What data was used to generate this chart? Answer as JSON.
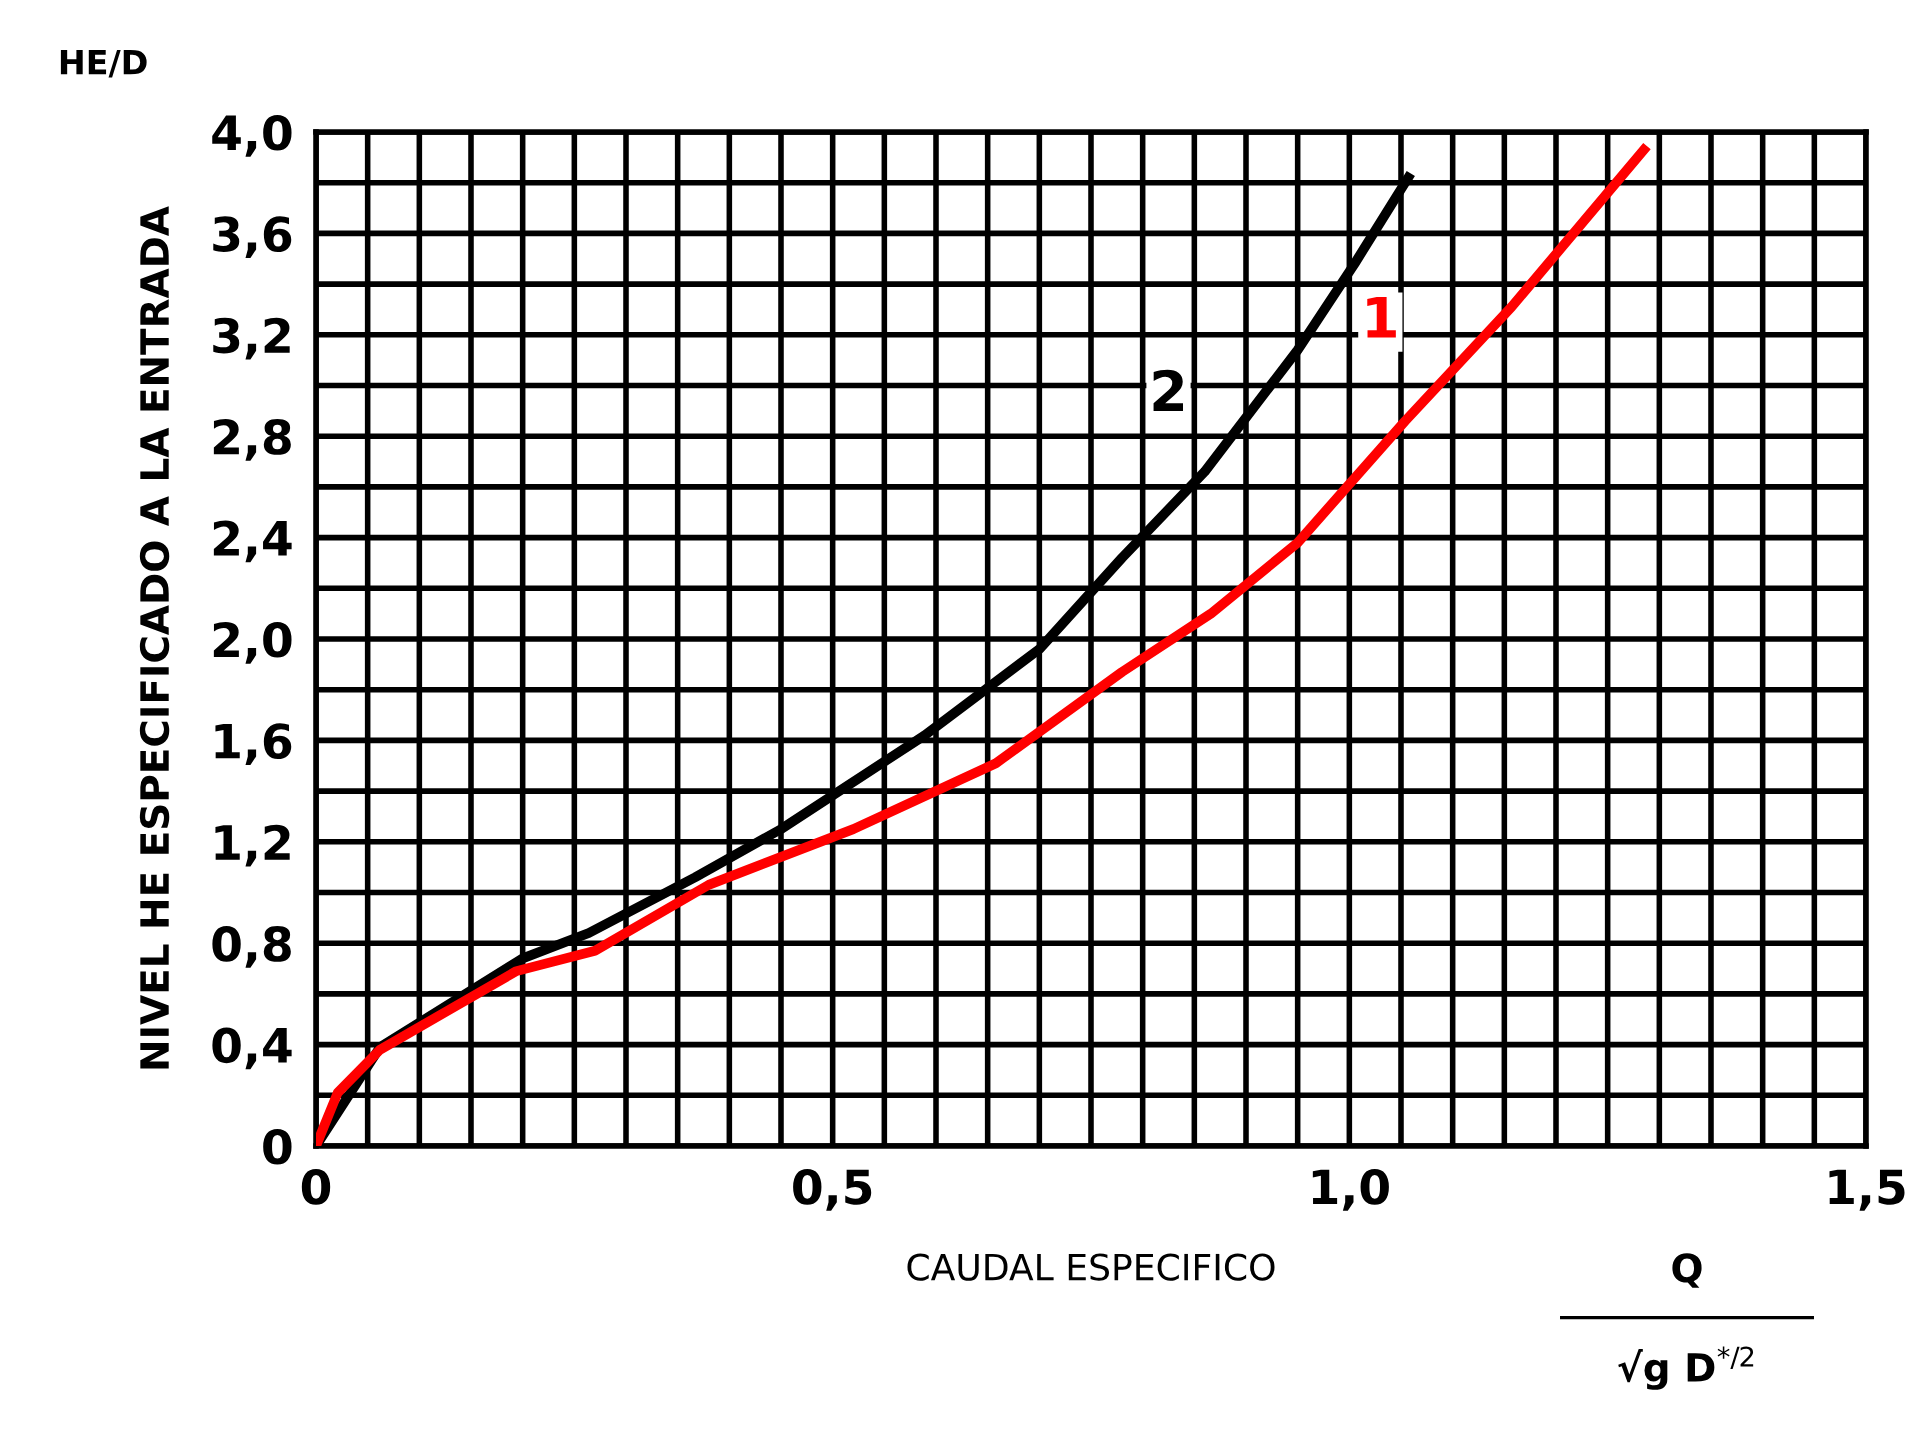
{
  "chart_data": {
    "type": "line",
    "xlabel": "CAUDAL ESPECIFICO",
    "ylabel": "NIVEL HE ESPECIFICADO A LA ENTRADA",
    "series": [
      {
        "name": "2",
        "color": "#000000",
        "x": [
          0,
          0.062,
          0.2,
          0.264,
          0.367,
          0.45,
          0.589,
          0.7,
          0.78,
          0.86,
          0.95,
          1.005,
          1.057
        ],
        "values": [
          0,
          0.39,
          0.74,
          0.84,
          1.06,
          1.25,
          1.62,
          1.96,
          2.32,
          2.66,
          3.14,
          3.48,
          3.82
        ]
      },
      {
        "name": "1",
        "color": "#ff0000",
        "x": [
          0,
          0.021,
          0.062,
          0.194,
          0.27,
          0.38,
          0.52,
          0.658,
          0.78,
          0.866,
          0.95,
          1.054,
          1.157,
          1.285
        ],
        "values": [
          0,
          0.21,
          0.38,
          0.69,
          0.77,
          1.03,
          1.25,
          1.51,
          1.87,
          2.1,
          2.38,
          2.86,
          3.31,
          3.93
        ]
      }
    ],
    "annotations": [
      "HE/D",
      "Q",
      "√g D$^{*/2}$"
    ],
    "xlim": [
      0,
      1.5
    ],
    "ylim": [
      0,
      4.0
    ],
    "xticks": [
      0,
      {
        "value": 0.05,
        "label": null
      },
      {
        "value": 0.1,
        "label": null
      },
      {
        "value": 0.15,
        "label": null
      },
      {
        "value": 0.2,
        "label": null
      },
      {
        "value": 0.25,
        "label": null
      },
      {
        "value": 0.3,
        "label": null
      },
      {
        "value": 0.35,
        "label": null
      },
      {
        "value": 0.4,
        "label": null
      },
      {
        "value": 0.45,
        "label": null
      },
      {
        "value": 0.5,
        "label": "0,5"
      },
      {
        "value": 0.55,
        "label": null
      },
      {
        "value": 0.6,
        "label": null
      },
      {
        "value": 0.65,
        "label": null
      },
      {
        "value": 0.7,
        "label": null
      },
      {
        "value": 0.75,
        "label": null
      },
      {
        "value": 0.8,
        "label": null
      },
      {
        "value": 0.85,
        "label": null
      },
      {
        "value": 0.9,
        "label": null
      },
      {
        "value": 0.95,
        "label": null
      },
      {
        "value": 1.0,
        "label": "1,0"
      },
      {
        "value": 1.05,
        "label": null
      },
      {
        "value": 1.1,
        "label": null
      },
      {
        "value": 1.15,
        "label": null
      },
      {
        "value": 1.2,
        "label": null
      },
      {
        "value": 1.25,
        "label": null
      },
      {
        "value": 1.3,
        "label": null
      },
      {
        "value": 1.35,
        "label": null
      },
      {
        "value": 1.4,
        "label": null
      },
      {
        "value": 1.45,
        "label": null
      },
      {
        "value": 1.5,
        "label": "1,5"
      }
    ],
    "yticks": [
      0,
      {
        "value": 0.2,
        "label": null
      },
      {
        "value": 0.4,
        "label": "0,4"
      },
      {
        "value": 0.6,
        "label": null
      },
      {
        "value": 0.8,
        "label": "0,8"
      },
      {
        "value": 1.0,
        "label": null
      },
      {
        "value": 1.2,
        "label": "1,2"
      },
      {
        "value": 1.4,
        "label": null
      },
      {
        "value": 1.6,
        "label": "1,6"
      },
      {
        "value": 1.8,
        "label": null
      },
      {
        "value": 2.0,
        "label": "2,0"
      },
      {
        "value": 2.2,
        "label": null
      },
      {
        "value": 2.4,
        "label": "2,4"
      },
      {
        "value": 2.6,
        "label": null
      },
      {
        "value": 2.8,
        "label": "2,8"
      },
      {
        "value": 3.0,
        "label": null
      },
      {
        "value": 3.2,
        "label": "3,2"
      },
      {
        "value": 3.4,
        "label": null
      },
      {
        "value": 3.6,
        "label": "3,6"
      },
      {
        "value": 3.8,
        "label": null
      },
      {
        "value": 4.0,
        "label": "4,0"
      }
    ],
    "grid": true,
    "legend": false,
    "marker": "none",
    "line_style": "solid"
  }
}
